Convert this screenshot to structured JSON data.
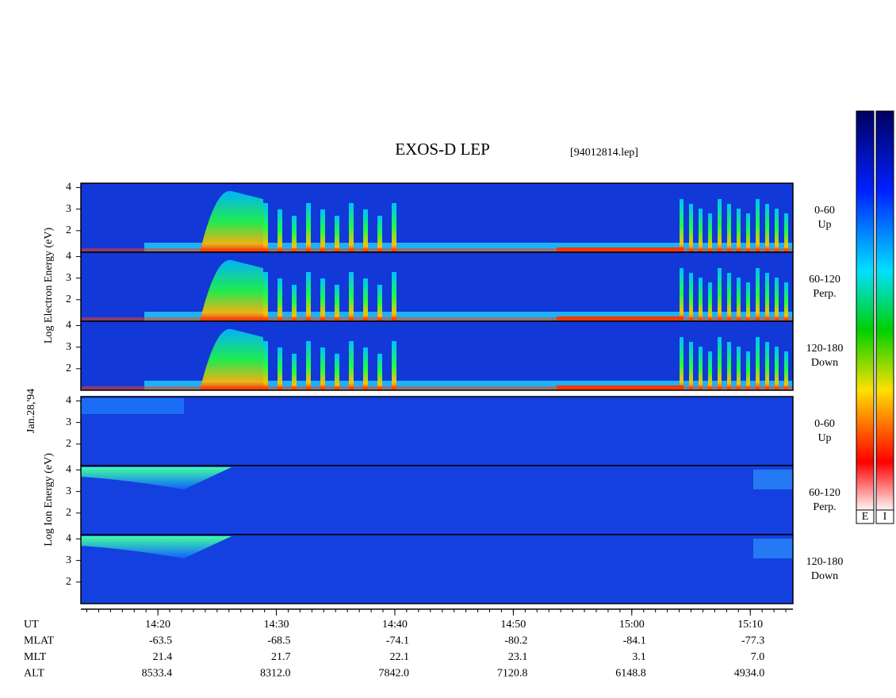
{
  "title": "EXOS-D LEP",
  "file": "[94012814.lep]",
  "date": "Jan.28,'94",
  "electron_axis_label": "Log   Electron   Energy (eV)",
  "ion_axis_label": "Log   Ion   Energy (eV)",
  "panels": [
    {
      "group": "electron",
      "label": "0-60",
      "sub": "Up"
    },
    {
      "group": "electron",
      "label": "60-120",
      "sub": "Perp."
    },
    {
      "group": "electron",
      "label": "120-180",
      "sub": "Down"
    },
    {
      "group": "ion",
      "label": "0-60",
      "sub": "Up"
    },
    {
      "group": "ion",
      "label": "60-120",
      "sub": "Perp."
    },
    {
      "group": "ion",
      "label": "120-180",
      "sub": "Down"
    }
  ],
  "ylim": [
    1,
    4.2
  ],
  "yticks": [
    2,
    3,
    4
  ],
  "xlim": [
    13.5,
    73.6
  ],
  "xticks": [
    {
      "value": 20,
      "label": "14:20"
    },
    {
      "value": 30,
      "label": "14:30"
    },
    {
      "value": 40,
      "label": "14:40"
    },
    {
      "value": 50,
      "label": "14:50"
    },
    {
      "value": 60,
      "label": "15:00"
    },
    {
      "value": 70,
      "label": "15:10"
    }
  ],
  "ephemeris": [
    {
      "name": "UT",
      "values": []
    },
    {
      "name": "MLAT",
      "values": [
        "-63.5",
        "-68.5",
        "-74.1",
        "-80.2",
        "-84.1",
        "-77.3"
      ]
    },
    {
      "name": "MLT",
      "values": [
        "21.4",
        "21.7",
        "22.1",
        "23.1",
        "3.1",
        "7.0"
      ]
    },
    {
      "name": "ALT",
      "values": [
        "8533.4",
        "8312.0",
        "7842.0",
        "7120.8",
        "6148.8",
        "4934.0"
      ]
    }
  ],
  "colorbars": [
    "E",
    "I"
  ]
}
